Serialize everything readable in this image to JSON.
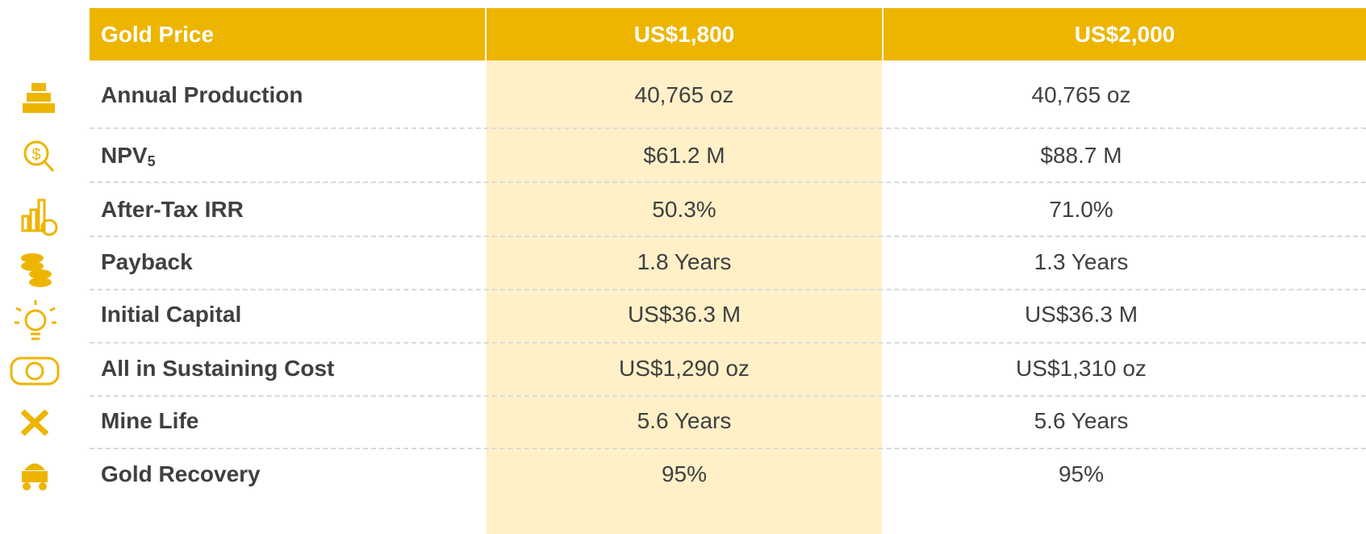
{
  "table": {
    "header": [
      "Gold Price",
      "US$1,800",
      "US$2,000"
    ],
    "rows": [
      [
        {
          "text": "Annual Production"
        },
        "40,765 oz",
        "40,765 oz"
      ],
      [
        {
          "text": "NPV",
          "subscript": "5"
        },
        "$61.2 M",
        "$88.7 M"
      ],
      [
        {
          "text": "After-Tax IRR"
        },
        "50.3%",
        "71.0%"
      ],
      [
        {
          "text": "Payback"
        },
        "1.8 Years",
        "1.3 Years"
      ],
      [
        {
          "text": "Initial Capital"
        },
        "US$36.3 M",
        "US$36.3 M"
      ],
      [
        {
          "text": "All in Sustaining Cost"
        },
        "US$1,290 oz",
        "US$1,310 oz"
      ],
      [
        {
          "text": "Mine Life"
        },
        "5.6 Years",
        "5.6 Years"
      ],
      [
        {
          "text": "Gold Recovery"
        },
        "95%",
        "95%"
      ]
    ]
  }
}
